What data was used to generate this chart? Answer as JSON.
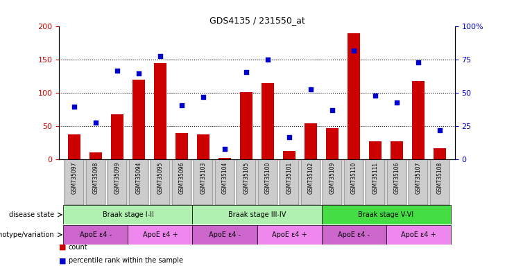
{
  "title": "GDS4135 / 231550_at",
  "samples": [
    "GSM735097",
    "GSM735098",
    "GSM735099",
    "GSM735094",
    "GSM735095",
    "GSM735096",
    "GSM735103",
    "GSM735104",
    "GSM735105",
    "GSM735100",
    "GSM735101",
    "GSM735102",
    "GSM735109",
    "GSM735110",
    "GSM735111",
    "GSM735106",
    "GSM735107",
    "GSM735108"
  ],
  "counts": [
    38,
    11,
    68,
    120,
    145,
    40,
    38,
    3,
    101,
    115,
    13,
    55,
    47,
    190,
    27,
    27,
    118,
    17
  ],
  "percentiles": [
    40,
    28,
    67,
    65,
    78,
    41,
    47,
    8,
    66,
    75,
    17,
    53,
    37,
    82,
    48,
    43,
    73,
    22
  ],
  "ylim_left": [
    0,
    200
  ],
  "ylim_right": [
    0,
    100
  ],
  "yticks_left": [
    0,
    50,
    100,
    150,
    200
  ],
  "yticks_right": [
    0,
    25,
    50,
    75,
    100
  ],
  "ytick_labels_right": [
    "0",
    "25",
    "50",
    "75",
    "100%"
  ],
  "bar_color": "#cc0000",
  "dot_color": "#0000cc",
  "disease_state_row": {
    "label": "disease state",
    "groups": [
      {
        "name": "Braak stage I-II",
        "start": 0,
        "end": 6,
        "color": "#b0f0b0"
      },
      {
        "name": "Braak stage III-IV",
        "start": 6,
        "end": 12,
        "color": "#b0f0b0"
      },
      {
        "name": "Braak stage V-VI",
        "start": 12,
        "end": 18,
        "color": "#44dd44"
      }
    ]
  },
  "genotype_row": {
    "label": "genotype/variation",
    "groups": [
      {
        "name": "ApoE ε4 -",
        "start": 0,
        "end": 3,
        "color": "#cc66cc"
      },
      {
        "name": "ApoE ε4 +",
        "start": 3,
        "end": 6,
        "color": "#ee88ee"
      },
      {
        "name": "ApoE ε4 -",
        "start": 6,
        "end": 9,
        "color": "#cc66cc"
      },
      {
        "name": "ApoE ε4 +",
        "start": 9,
        "end": 12,
        "color": "#ee88ee"
      },
      {
        "name": "ApoE ε4 -",
        "start": 12,
        "end": 15,
        "color": "#cc66cc"
      },
      {
        "name": "ApoE ε4 +",
        "start": 15,
        "end": 18,
        "color": "#ee88ee"
      }
    ]
  },
  "bg_color": "#ffffff",
  "tick_bg_color": "#cccccc"
}
